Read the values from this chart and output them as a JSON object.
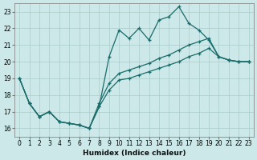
{
  "xlabel": "Humidex (Indice chaleur)",
  "background_color": "#cce8e8",
  "grid_color": "#aacccc",
  "line_color": "#1a6b6b",
  "xlim": [
    -0.5,
    23.5
  ],
  "ylim": [
    15.5,
    23.5
  ],
  "xticks": [
    0,
    1,
    2,
    3,
    4,
    5,
    6,
    7,
    8,
    9,
    10,
    11,
    12,
    13,
    14,
    15,
    16,
    17,
    18,
    19,
    20,
    21,
    22,
    23
  ],
  "yticks": [
    16,
    17,
    18,
    19,
    20,
    21,
    22,
    23
  ],
  "line1_x": [
    0,
    1,
    2,
    3,
    4,
    5,
    6,
    7,
    8,
    9,
    10,
    11,
    12,
    13,
    14,
    15,
    16,
    17,
    18,
    19,
    20,
    21,
    22,
    23
  ],
  "line1_y": [
    19.0,
    17.5,
    16.7,
    17.0,
    16.4,
    16.3,
    16.2,
    16.0,
    17.3,
    20.3,
    21.9,
    21.4,
    22.0,
    21.3,
    22.5,
    22.7,
    23.3,
    22.3,
    21.9,
    21.3,
    20.3,
    20.1,
    20.0,
    20.0
  ],
  "line2_x": [
    0,
    1,
    2,
    3,
    4,
    5,
    6,
    7,
    8,
    9,
    10,
    11,
    12,
    13,
    14,
    15,
    16,
    17,
    18,
    19,
    20,
    21,
    22,
    23
  ],
  "line2_y": [
    19.0,
    17.5,
    16.7,
    17.0,
    16.4,
    16.3,
    16.2,
    16.0,
    17.5,
    18.7,
    19.3,
    19.5,
    19.7,
    19.9,
    20.2,
    20.4,
    20.7,
    21.0,
    21.2,
    21.4,
    20.3,
    20.1,
    20.0,
    20.0
  ],
  "line3_x": [
    0,
    1,
    2,
    3,
    4,
    5,
    6,
    7,
    8,
    9,
    10,
    11,
    12,
    13,
    14,
    15,
    16,
    17,
    18,
    19,
    20,
    21,
    22,
    23
  ],
  "line3_y": [
    19.0,
    17.5,
    16.7,
    17.0,
    16.4,
    16.3,
    16.2,
    16.0,
    17.3,
    18.3,
    18.9,
    19.0,
    19.2,
    19.4,
    19.6,
    19.8,
    20.0,
    20.3,
    20.5,
    20.8,
    20.3,
    20.1,
    20.0,
    20.0
  ]
}
